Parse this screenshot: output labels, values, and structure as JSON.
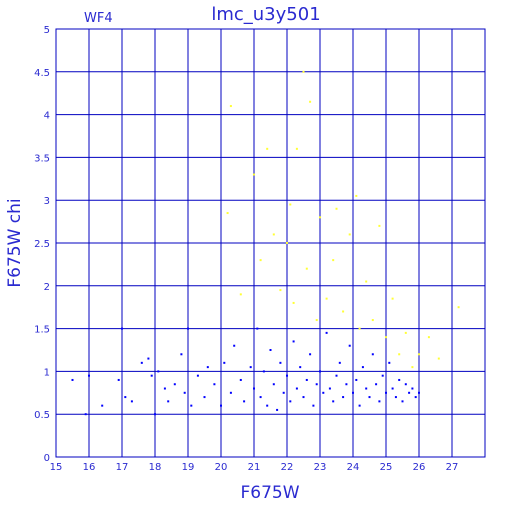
{
  "chart_data": {
    "type": "scatter",
    "title": "lmc_u3y501",
    "annotation": "WF4",
    "xlabel": "F675W",
    "ylabel": "F675W  chi",
    "xlim": [
      15,
      28
    ],
    "ylim": [
      0,
      5
    ],
    "xticks": [
      15,
      16,
      17,
      18,
      19,
      20,
      21,
      22,
      23,
      24,
      25,
      26,
      27
    ],
    "xtick_labels": [
      "15",
      "16",
      "17",
      "18",
      "19",
      "20",
      "21",
      "22",
      "23",
      "24",
      "25",
      "26",
      "27"
    ],
    "yticks": [
      0,
      0.5,
      1,
      1.5,
      2,
      2.5,
      3,
      3.5,
      4,
      4.5,
      5
    ],
    "ytick_labels": [
      "0",
      "0.5",
      "1",
      "1.5",
      "2",
      "2.5",
      "3",
      "3.5",
      "4",
      "4.5",
      "5"
    ],
    "grid": true,
    "series": [
      {
        "color": "#0000ff",
        "points": [
          [
            15.5,
            0.9
          ],
          [
            15.9,
            0.5
          ],
          [
            16.0,
            0.95
          ],
          [
            16.4,
            0.6
          ],
          [
            16.9,
            0.9
          ],
          [
            17.0,
            1.5
          ],
          [
            17.1,
            0.7
          ],
          [
            17.3,
            0.65
          ],
          [
            17.6,
            1.1
          ],
          [
            17.8,
            1.15
          ],
          [
            17.9,
            0.95
          ],
          [
            18.0,
            0.5
          ],
          [
            18.1,
            1.0
          ],
          [
            18.3,
            0.8
          ],
          [
            18.4,
            0.65
          ],
          [
            18.6,
            0.85
          ],
          [
            18.8,
            1.2
          ],
          [
            18.9,
            0.75
          ],
          [
            19.0,
            1.5
          ],
          [
            19.1,
            0.6
          ],
          [
            19.3,
            0.95
          ],
          [
            19.5,
            0.7
          ],
          [
            19.6,
            1.05
          ],
          [
            19.8,
            0.85
          ],
          [
            20.0,
            0.6
          ],
          [
            20.1,
            1.1
          ],
          [
            20.3,
            0.75
          ],
          [
            20.4,
            1.3
          ],
          [
            20.6,
            0.9
          ],
          [
            20.7,
            0.65
          ],
          [
            20.9,
            1.05
          ],
          [
            21.0,
            0.8
          ],
          [
            21.1,
            1.5
          ],
          [
            21.2,
            0.7
          ],
          [
            21.3,
            1.0
          ],
          [
            21.4,
            0.6
          ],
          [
            21.5,
            1.25
          ],
          [
            21.6,
            0.85
          ],
          [
            21.7,
            0.55
          ],
          [
            21.8,
            1.1
          ],
          [
            21.9,
            0.75
          ],
          [
            22.0,
            0.95
          ],
          [
            22.1,
            0.65
          ],
          [
            22.2,
            1.35
          ],
          [
            22.3,
            0.8
          ],
          [
            22.4,
            1.05
          ],
          [
            22.5,
            0.7
          ],
          [
            22.6,
            0.9
          ],
          [
            22.7,
            1.2
          ],
          [
            22.8,
            0.6
          ],
          [
            22.9,
            0.85
          ],
          [
            23.0,
            1.0
          ],
          [
            23.1,
            0.75
          ],
          [
            23.2,
            1.45
          ],
          [
            23.3,
            0.8
          ],
          [
            23.4,
            0.65
          ],
          [
            23.5,
            0.95
          ],
          [
            23.6,
            1.1
          ],
          [
            23.7,
            0.7
          ],
          [
            23.8,
            0.85
          ],
          [
            23.9,
            1.3
          ],
          [
            24.0,
            0.75
          ],
          [
            24.1,
            0.9
          ],
          [
            24.2,
            0.6
          ],
          [
            24.3,
            1.05
          ],
          [
            24.4,
            0.8
          ],
          [
            24.5,
            0.7
          ],
          [
            24.6,
            1.2
          ],
          [
            24.7,
            0.85
          ],
          [
            24.8,
            0.65
          ],
          [
            24.9,
            0.95
          ],
          [
            25.0,
            0.75
          ],
          [
            25.1,
            1.1
          ],
          [
            25.2,
            0.8
          ],
          [
            25.3,
            0.7
          ],
          [
            25.4,
            0.9
          ],
          [
            25.5,
            0.65
          ],
          [
            25.6,
            0.85
          ],
          [
            25.7,
            0.75
          ],
          [
            25.8,
            0.8
          ],
          [
            25.9,
            0.7
          ],
          [
            26.0,
            0.75
          ]
        ]
      },
      {
        "color": "#ffff33",
        "points": [
          [
            20.2,
            2.85
          ],
          [
            20.3,
            4.1
          ],
          [
            20.6,
            1.9
          ],
          [
            21.0,
            3.3
          ],
          [
            21.2,
            2.3
          ],
          [
            21.4,
            3.6
          ],
          [
            21.6,
            2.6
          ],
          [
            21.8,
            1.95
          ],
          [
            22.0,
            2.5
          ],
          [
            22.1,
            2.95
          ],
          [
            22.2,
            1.8
          ],
          [
            22.3,
            3.6
          ],
          [
            22.5,
            4.5
          ],
          [
            22.6,
            2.2
          ],
          [
            22.7,
            4.15
          ],
          [
            22.9,
            1.6
          ],
          [
            23.0,
            2.8
          ],
          [
            23.2,
            1.85
          ],
          [
            23.4,
            2.3
          ],
          [
            23.5,
            2.9
          ],
          [
            23.7,
            1.7
          ],
          [
            23.9,
            2.6
          ],
          [
            24.1,
            3.05
          ],
          [
            24.2,
            1.5
          ],
          [
            24.4,
            2.05
          ],
          [
            24.6,
            1.6
          ],
          [
            24.8,
            2.7
          ],
          [
            25.0,
            1.4
          ],
          [
            25.2,
            1.85
          ],
          [
            25.4,
            1.2
          ],
          [
            25.6,
            1.45
          ],
          [
            25.8,
            1.05
          ],
          [
            26.0,
            1.2
          ],
          [
            26.3,
            1.4
          ],
          [
            26.6,
            1.15
          ],
          [
            27.2,
            1.75
          ]
        ]
      }
    ]
  }
}
